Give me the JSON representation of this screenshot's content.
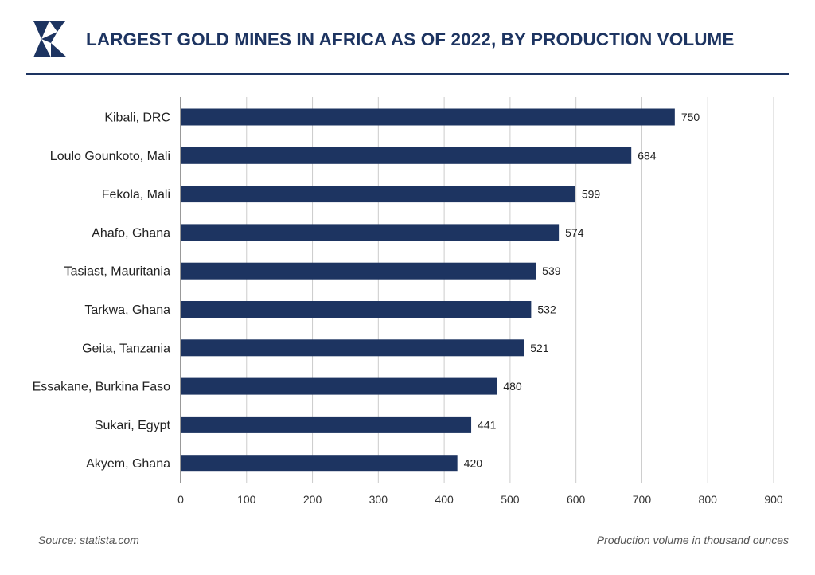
{
  "header": {
    "title": "LARGEST GOLD MINES IN AFRICA AS OF 2022, BY PRODUCTION VOLUME"
  },
  "footer": {
    "source": "Source: statista.com",
    "unit_note": "Production volume in thousand ounces"
  },
  "colors": {
    "bar": "#1d3461",
    "title": "#1d3461",
    "grid": "#cccccc"
  },
  "chart_data": {
    "type": "bar",
    "orientation": "horizontal",
    "title": "LARGEST GOLD MINES IN AFRICA AS OF 2022, BY PRODUCTION VOLUME",
    "categories": [
      "Kibali, DRC",
      "Loulo Gounkoto, Mali",
      "Fekola, Mali",
      "Ahafo, Ghana",
      "Tasiast, Mauritania",
      "Tarkwa, Ghana",
      "Geita, Tanzania",
      "Essakane, Burkina Faso",
      "Sukari, Egypt",
      "Akyem, Ghana"
    ],
    "values": [
      750,
      684,
      599,
      574,
      539,
      532,
      521,
      480,
      441,
      420
    ],
    "xlabel": "Production volume in thousand ounces",
    "ylabel": "",
    "xlim": [
      0,
      900
    ],
    "xticks": [
      0,
      100,
      200,
      300,
      400,
      500,
      600,
      700,
      800,
      900
    ],
    "grid": true,
    "legend": "none"
  }
}
